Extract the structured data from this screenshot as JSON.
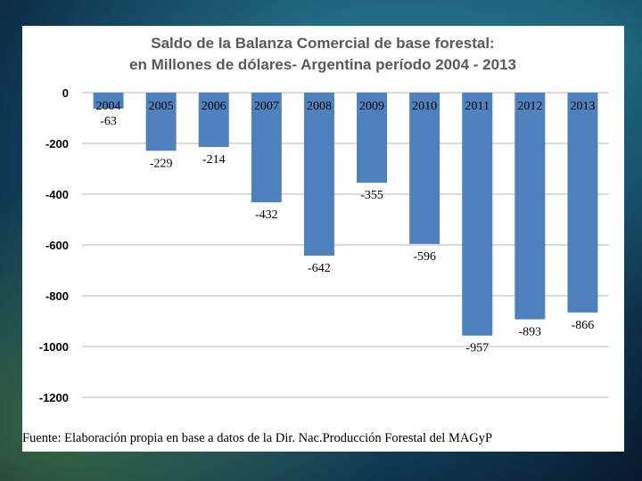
{
  "colors": {
    "bar": "#4f81bd",
    "grid": "#b7b7b7",
    "panel": "#ffffff"
  },
  "chart_data": {
    "type": "bar",
    "title_lines": [
      "Saldo de la Balanza Comercial de base forestal:",
      "en Millones de dólares- Argentina período 2004 - 2013"
    ],
    "categories": [
      "2004",
      "2005",
      "2006",
      "2007",
      "2008",
      "2009",
      "2010",
      "2011",
      "2012",
      "2013"
    ],
    "values": [
      -63,
      -229,
      -214,
      -432,
      -642,
      -355,
      -596,
      -957,
      -893,
      -866
    ],
    "data_labels": [
      "-63",
      "-229",
      "-214",
      "-432",
      "-642",
      "-355",
      "-596",
      "-957",
      "-893",
      "-866"
    ],
    "ylim": [
      -1200,
      0
    ],
    "y_ticks": [
      0,
      -200,
      -400,
      -600,
      -800,
      -1000,
      -1200
    ],
    "y_tick_labels": [
      "0",
      "-200",
      "-400",
      "-600",
      "-800",
      "-1000",
      "-1200"
    ],
    "grid": true,
    "xlabel": "",
    "ylabel": ""
  },
  "source": "Fuente: Elaboración propia en base a datos de la Dir. Nac.Producción Forestal del MAGyP"
}
